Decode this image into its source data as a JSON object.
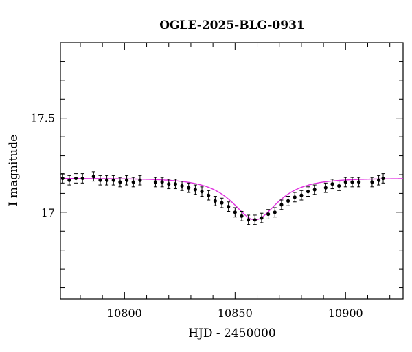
{
  "chart_data": {
    "type": "scatter",
    "title": "OGLE-2025-BLG-0931",
    "xlabel": "HJD - 2450000",
    "ylabel": "I magnitude",
    "xlim": [
      10771,
      10926
    ],
    "ylim": [
      17.9,
      16.54
    ],
    "y_inverted": true,
    "grid": false,
    "x_ticks": [
      10800,
      10850,
      10900
    ],
    "y_ticks": [
      17,
      17.5
    ],
    "model_color": "#e030e0",
    "point_color": "#000000",
    "model": {
      "baseline_mag": 17.18,
      "peak_mag": 16.96,
      "t0": 10859,
      "tE_days": 16
    },
    "series": [
      {
        "x": [
          10772,
          10775,
          10778,
          10781,
          10786,
          10789,
          10792,
          10795,
          10798,
          10801,
          10804,
          10807,
          10814,
          10817,
          10820,
          10823,
          10826,
          10829,
          10832,
          10835,
          10838,
          10841,
          10844,
          10847,
          10850,
          10853,
          10856,
          10859,
          10862,
          10865,
          10868,
          10871,
          10874,
          10877,
          10880,
          10883,
          10886,
          10891,
          10894,
          10897,
          10900,
          10903,
          10906,
          10912,
          10915,
          10917
        ],
        "y": [
          17.18,
          17.17,
          17.18,
          17.18,
          17.19,
          17.17,
          17.17,
          17.17,
          17.16,
          17.17,
          17.16,
          17.17,
          17.16,
          17.16,
          17.15,
          17.15,
          17.14,
          17.13,
          17.12,
          17.11,
          17.09,
          17.06,
          17.05,
          17.03,
          17.0,
          16.98,
          16.96,
          16.96,
          16.97,
          16.99,
          17.0,
          17.04,
          17.06,
          17.08,
          17.09,
          17.11,
          17.12,
          17.13,
          17.15,
          17.14,
          17.16,
          17.16,
          17.16,
          17.16,
          17.17,
          17.18
        ]
      }
    ]
  }
}
